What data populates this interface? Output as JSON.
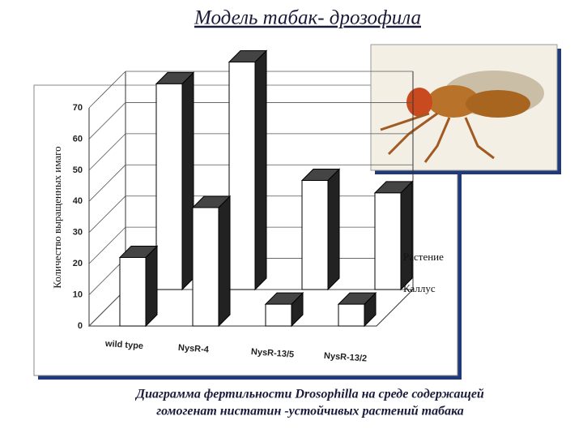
{
  "chart_data": {
    "type": "bar3d",
    "title": "Модель табак- дрозофила",
    "y_label": "Количество выращенных имаго",
    "caption": [
      "Диаграмма фертильности Drosophilla на среде содержащей",
      "гомогенат нистатин -устойчивых растений табака"
    ],
    "categories": [
      "wild type",
      "NysR-4",
      "NysR-13/5",
      "NysR-13/2"
    ],
    "series": [
      {
        "name": "Растение",
        "color": "#ffffff",
        "values": [
          66,
          73,
          35,
          31
        ]
      },
      {
        "name": "Каллус",
        "color": "#ffffff",
        "values": [
          22,
          38,
          7,
          7
        ]
      }
    ],
    "ylim": [
      0,
      70
    ],
    "yticks": [
      0,
      10,
      20,
      30,
      40,
      50,
      60,
      70
    ],
    "grid": true
  }
}
